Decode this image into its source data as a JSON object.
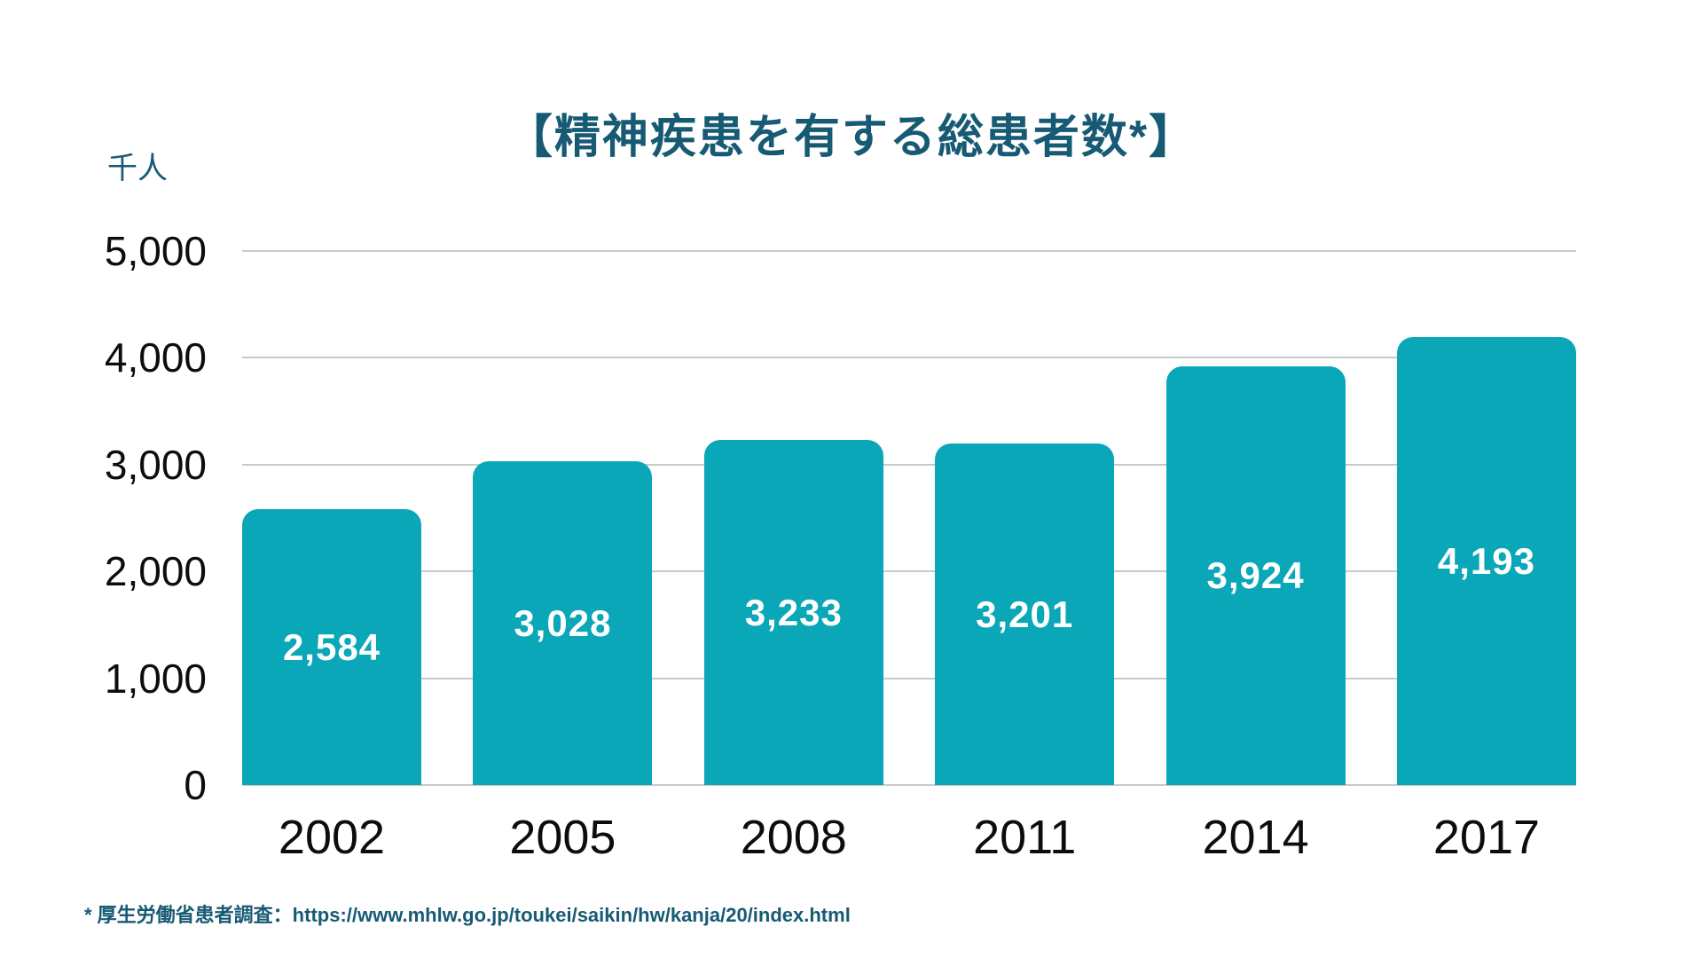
{
  "page": {
    "title": "【精神疾患を有する総患者数*】",
    "unit_label": "千人",
    "footnote": "* 厚生労働省患者調査：https://www.mhlw.go.jp/toukei/saikin/hw/kanja/20/index.html"
  },
  "colors": {
    "bar": "#0AA7B8",
    "heading_text": "#175A73",
    "axis_text": "#0D0D0D",
    "bar_value_text": "#FFFFFF",
    "gridline": "#C9C9C9",
    "background": "#FFFFFF"
  },
  "chart_data": {
    "type": "bar",
    "title": "【精神疾患を有する総患者数*】",
    "unit": "千人",
    "xlabel": "",
    "ylabel": "千人",
    "categories": [
      "2002",
      "2005",
      "2008",
      "2011",
      "2014",
      "2017"
    ],
    "values": [
      2584,
      3028,
      3233,
      3201,
      3924,
      4193
    ],
    "value_labels": [
      "2,584",
      "3,028",
      "3,233",
      "3,201",
      "3,924",
      "4,193"
    ],
    "ylim": [
      0,
      5000
    ],
    "yticks": [
      0,
      1000,
      2000,
      3000,
      4000,
      5000
    ],
    "ytick_labels": [
      "0",
      "1,000",
      "2,000",
      "3,000",
      "4,000",
      "5,000"
    ],
    "grid": true,
    "legend": false,
    "annotation": "* 厚生労働省患者調査：https://www.mhlw.go.jp/toukei/saikin/hw/kanja/20/index.html"
  }
}
